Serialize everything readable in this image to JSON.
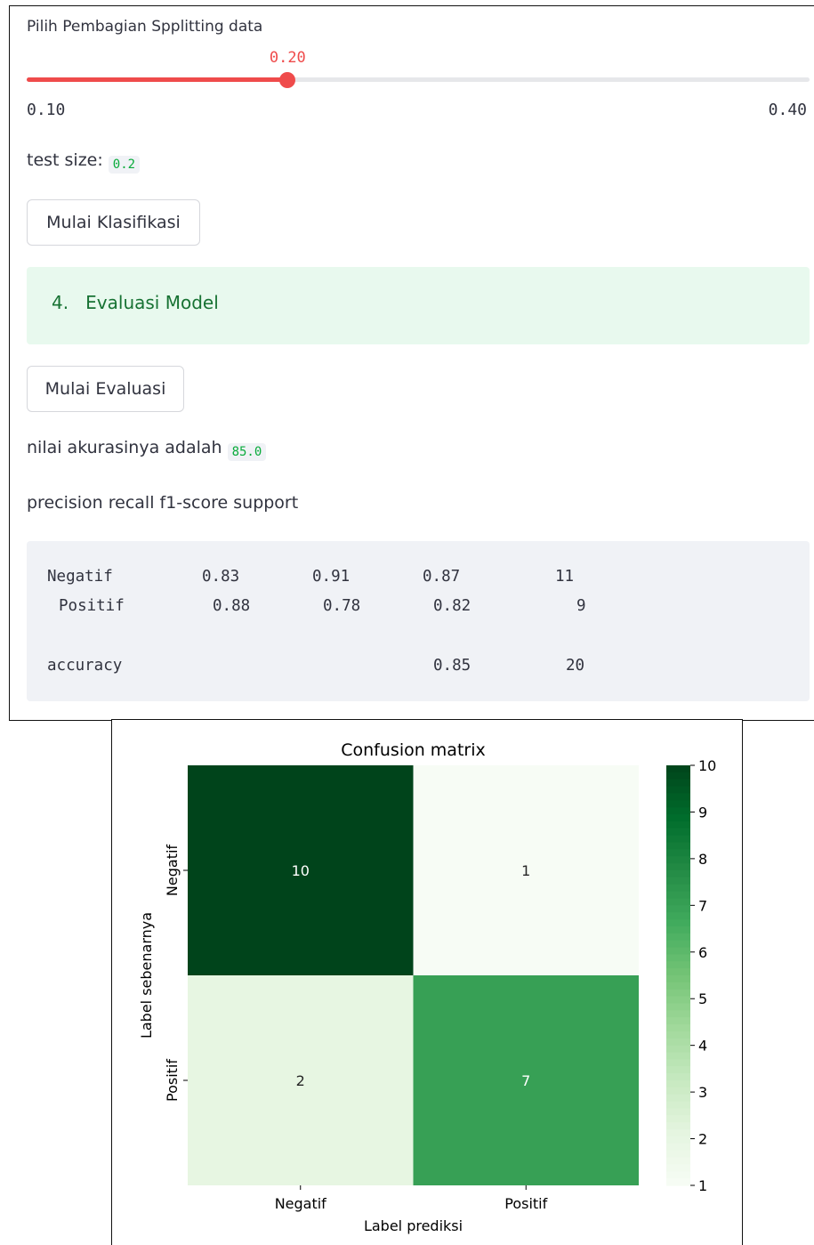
{
  "slider": {
    "label": "Pilih Pembagian Spplitting data",
    "value_text": "0.20",
    "min_text": "0.10",
    "max_text": "0.40",
    "value": 0.2,
    "min": 0.1,
    "max": 0.4,
    "accent_color": "#ef4b4b"
  },
  "test_size": {
    "label": "test size:",
    "value": "0.2"
  },
  "buttons": {
    "klasifikasi": "Mulai Klasifikasi",
    "evaluasi": "Mulai Evaluasi"
  },
  "section": {
    "number": "4.",
    "title": "Evaluasi Model",
    "color": "#177233"
  },
  "akurasi": {
    "label": "nilai akurasinya adalah",
    "value": "85.0"
  },
  "report": {
    "header": "precision recall f1-score support",
    "rows": [
      {
        "label": "Negatif",
        "precision": "0.83",
        "recall": "0.91",
        "f1": "0.87",
        "support": "11"
      },
      {
        "label": "Positif",
        "precision": "0.88",
        "recall": "0.78",
        "f1": "0.82",
        "support": "9"
      }
    ],
    "accuracy": {
      "label": "accuracy",
      "f1": "0.85",
      "support": "20"
    }
  },
  "chart_data": {
    "type": "heatmap",
    "title": "Confusion matrix",
    "xlabel": "Label prediksi",
    "ylabel": "Label sebenarnya",
    "x_categories": [
      "Negatif",
      "Positif"
    ],
    "y_categories": [
      "Negatif",
      "Positif"
    ],
    "values": [
      [
        10,
        1
      ],
      [
        2,
        7
      ]
    ],
    "colormap": "Greens",
    "colorbar": {
      "min": 1,
      "max": 10,
      "ticks": [
        1,
        2,
        3,
        4,
        5,
        6,
        7,
        8,
        9,
        10
      ]
    }
  }
}
